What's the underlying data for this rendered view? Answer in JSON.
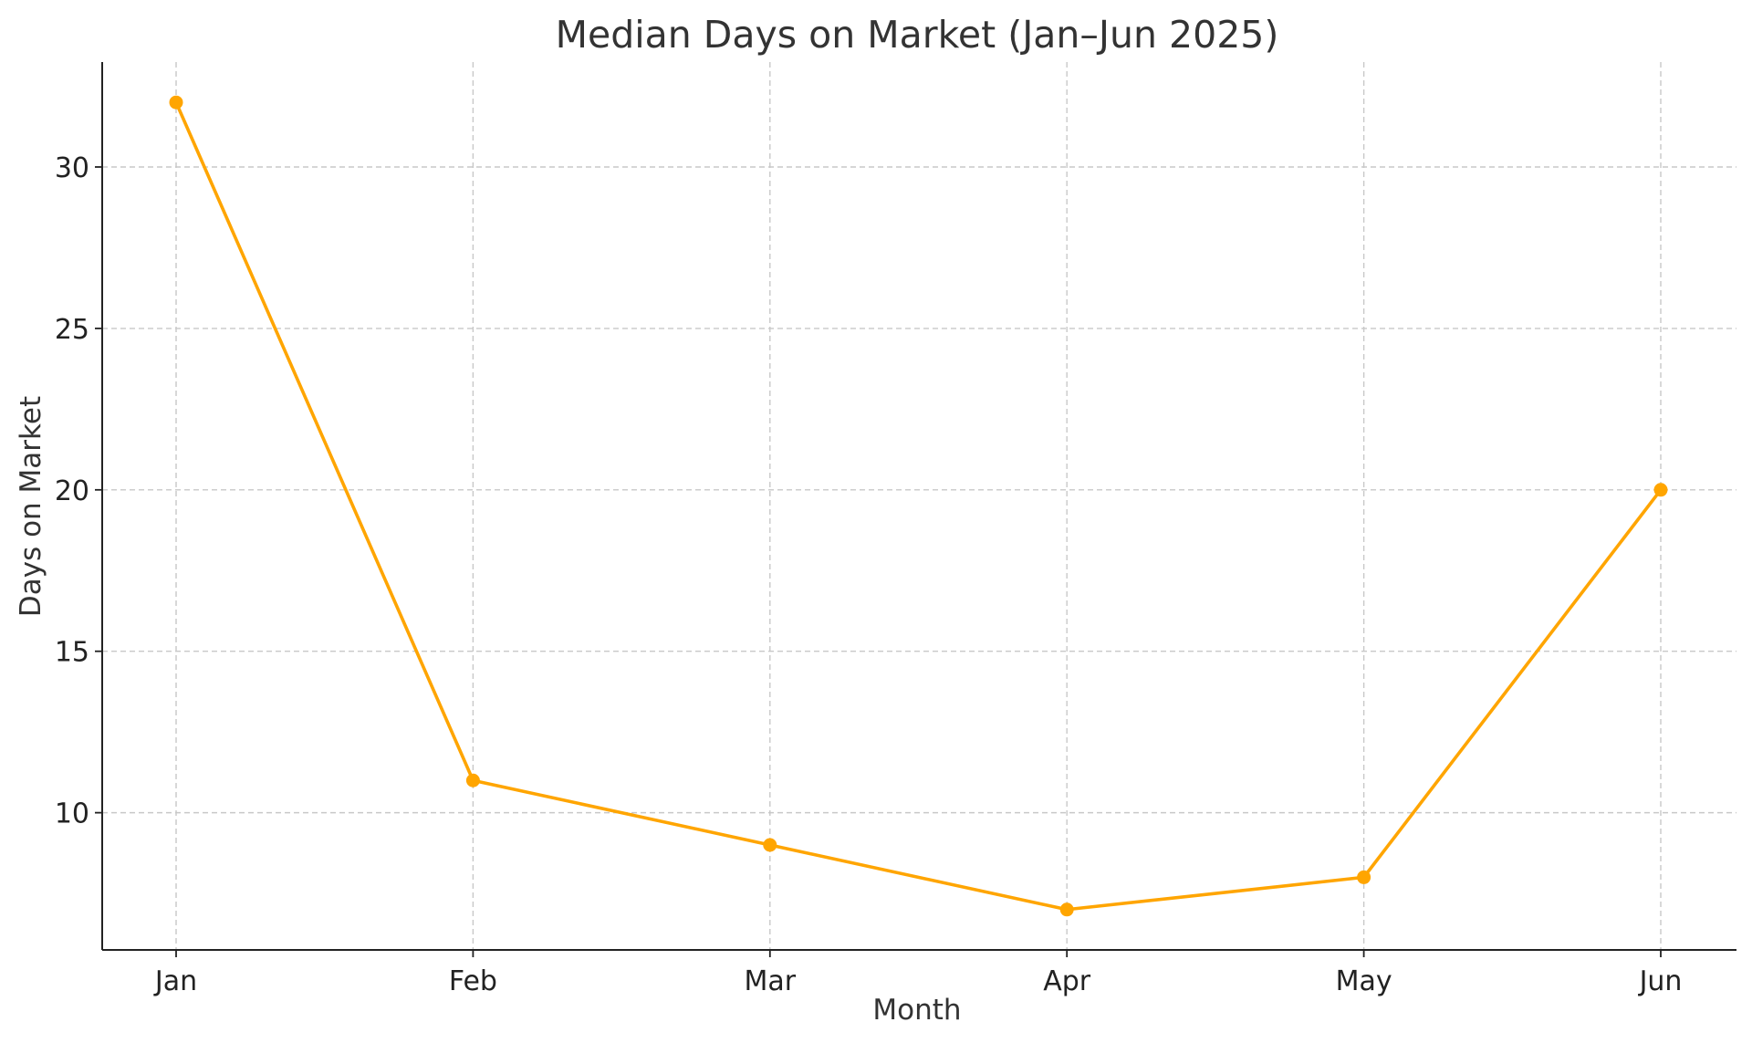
{
  "chart_data": {
    "type": "line",
    "title": "Median Days on Market (Jan–Jun 2025)",
    "xlabel": "Month",
    "ylabel": "Days on Market",
    "categories": [
      "Jan",
      "Feb",
      "Mar",
      "Apr",
      "May",
      "Jun"
    ],
    "series": [
      {
        "values": [
          32,
          11,
          9,
          7,
          8,
          20
        ],
        "color": "#FFA500"
      }
    ],
    "ylim": [
      5.75,
      33.25
    ],
    "yticks": [
      10,
      15,
      20,
      25,
      30
    ],
    "grid": true,
    "legend": "none"
  }
}
